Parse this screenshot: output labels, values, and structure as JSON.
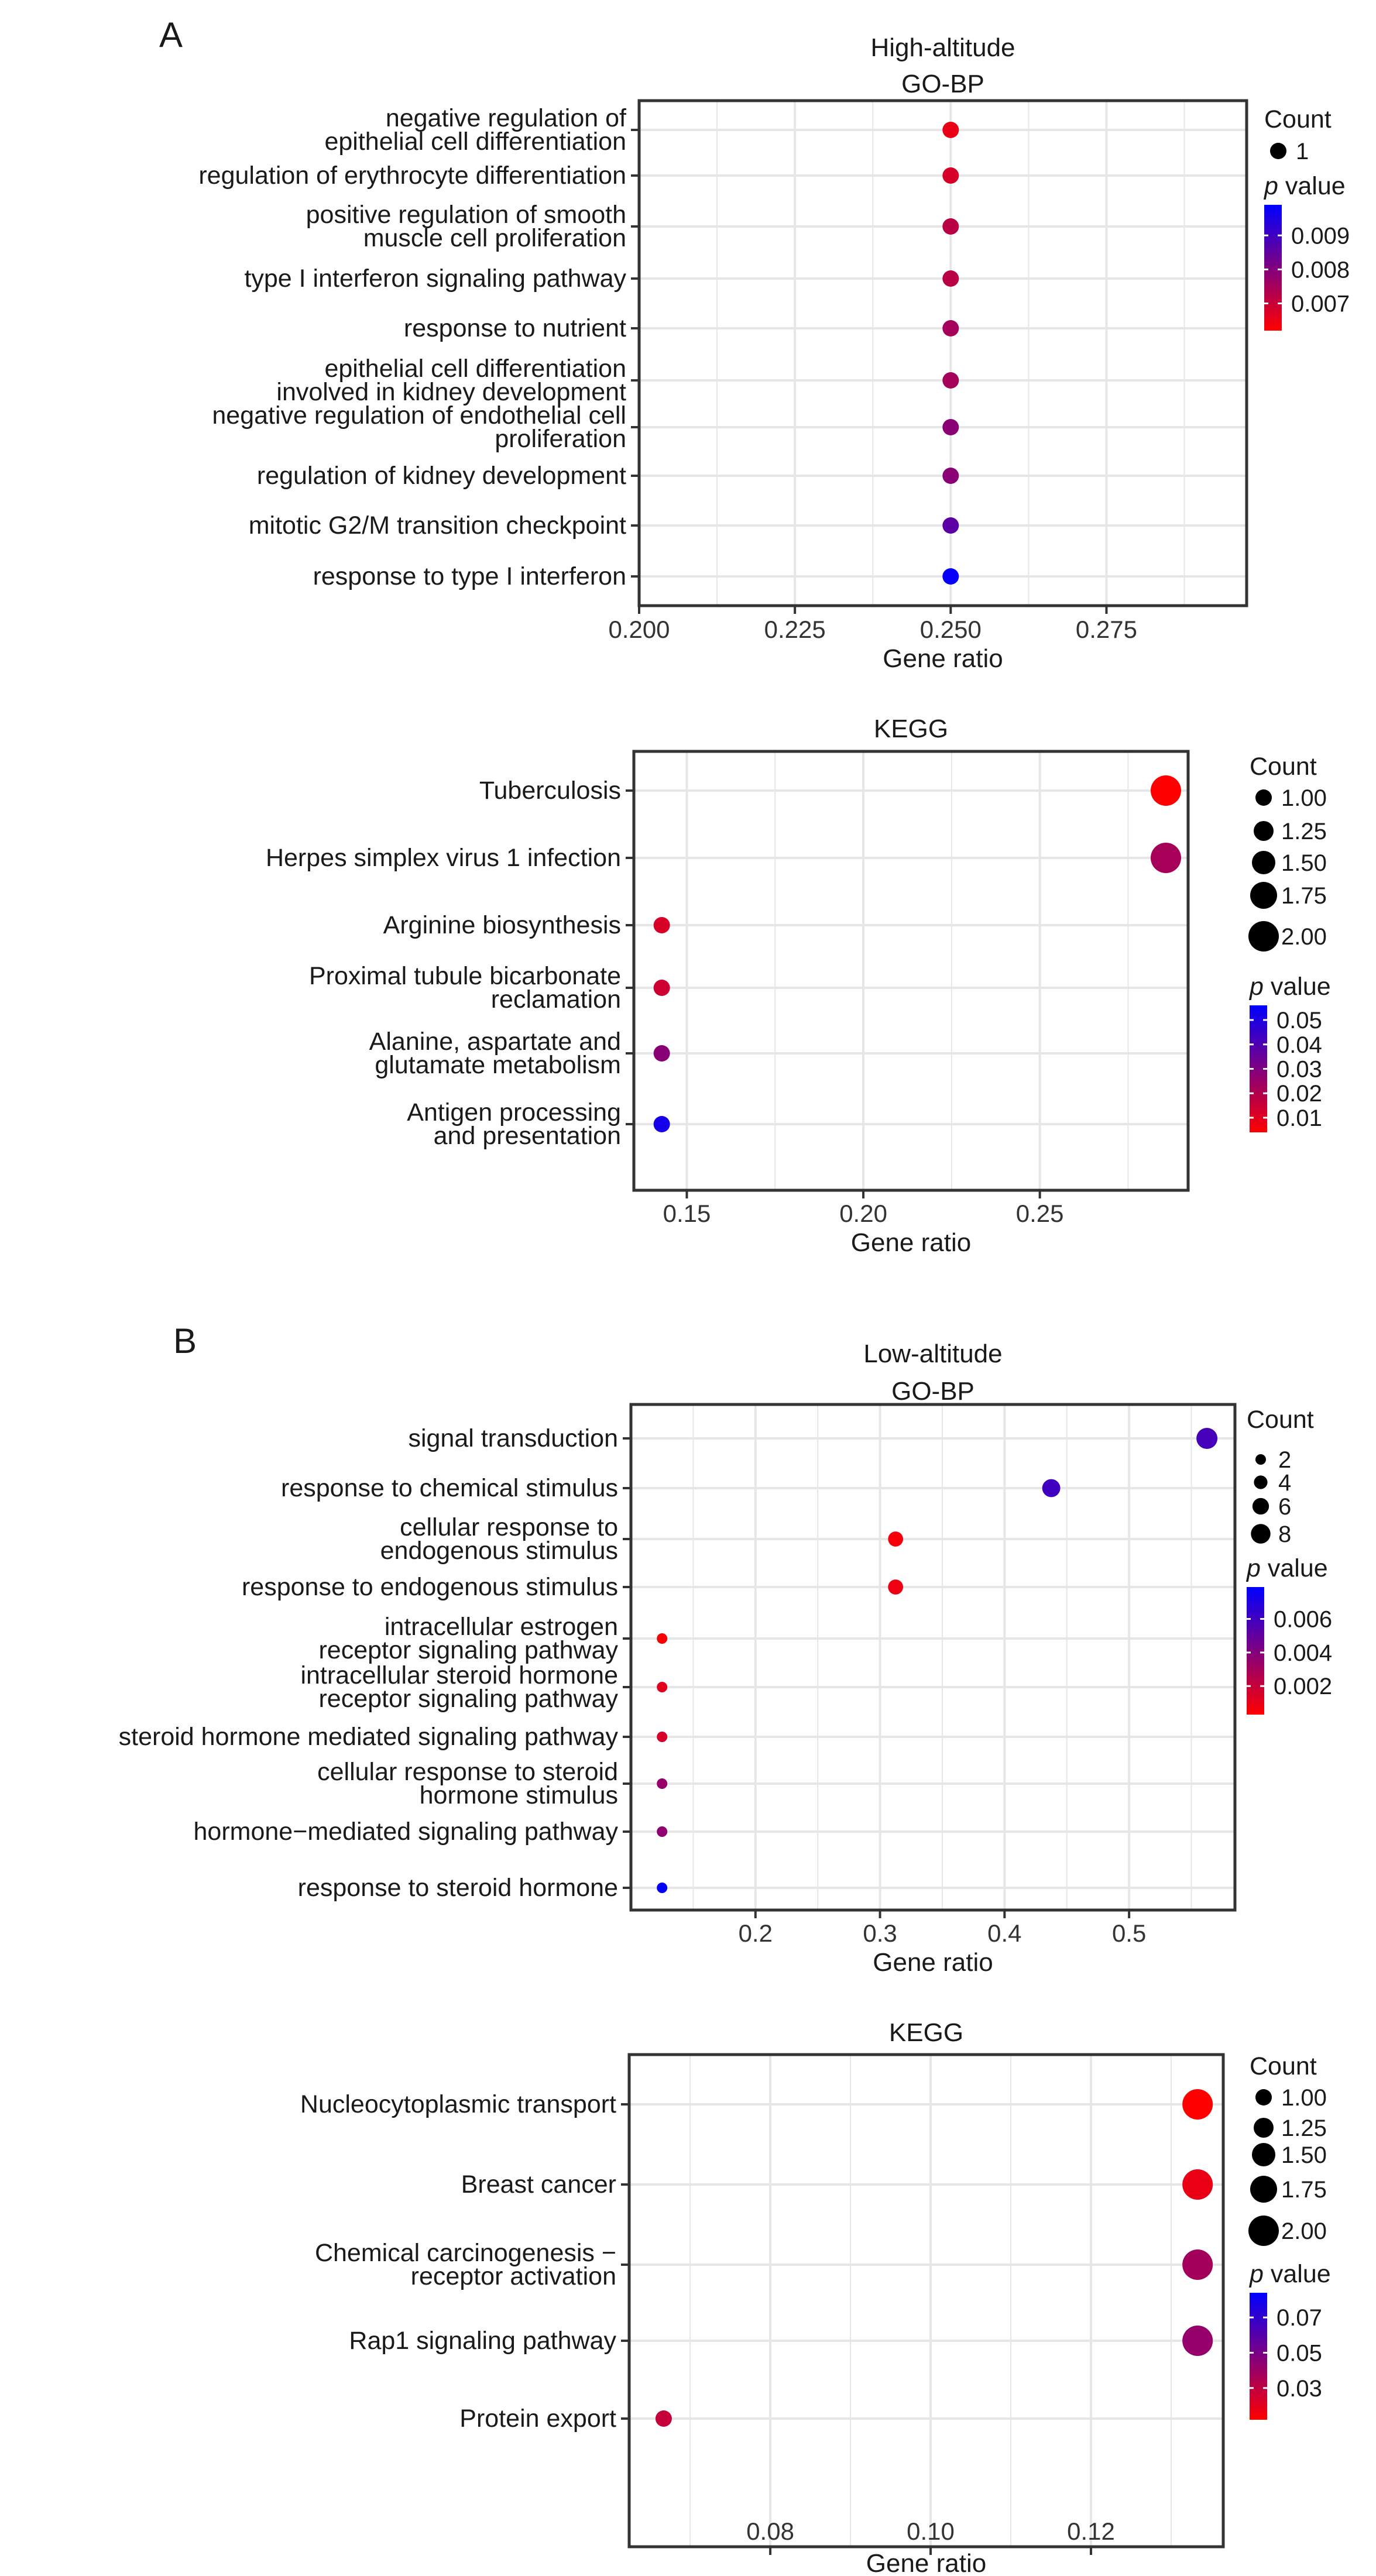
{
  "figure": {
    "panel_labels": [
      "A",
      "B"
    ]
  },
  "chart_data": [
    {
      "panel": "A",
      "type": "scatter",
      "title_lines": [
        "High-altitude",
        "GO-BP"
      ],
      "xlabel": "Gene ratio",
      "ylabel": "",
      "xlim": [
        0.2,
        0.2975
      ],
      "xticks": [
        0.2,
        0.225,
        0.25,
        0.275
      ],
      "xtick_labels": [
        "0.200",
        "0.225",
        "0.250",
        "0.275"
      ],
      "grid": true,
      "terms": [
        {
          "label": [
            "negative regulation of",
            "epithelial cell differentiation"
          ],
          "x": 0.25,
          "count": 1,
          "p": 0.0065
        },
        {
          "label": [
            "regulation of erythrocyte differentiation"
          ],
          "x": 0.25,
          "count": 1,
          "p": 0.0068
        },
        {
          "label": [
            "positive regulation of smooth",
            "muscle cell proliferation"
          ],
          "x": 0.25,
          "count": 1,
          "p": 0.0072
        },
        {
          "label": [
            "type I interferon signaling pathway"
          ],
          "x": 0.25,
          "count": 1,
          "p": 0.0072
        },
        {
          "label": [
            "response to nutrient"
          ],
          "x": 0.25,
          "count": 1,
          "p": 0.0075
        },
        {
          "label": [
            "epithelial cell differentiation",
            "involved in kidney development"
          ],
          "x": 0.25,
          "count": 1,
          "p": 0.0075
        },
        {
          "label": [
            "negative regulation of endothelial cell",
            "proliferation"
          ],
          "x": 0.25,
          "count": 1,
          "p": 0.0079
        },
        {
          "label": [
            "regulation of kidney development"
          ],
          "x": 0.25,
          "count": 1,
          "p": 0.0079
        },
        {
          "label": [
            "mitotic G2/M transition checkpoint"
          ],
          "x": 0.25,
          "count": 1,
          "p": 0.0086
        },
        {
          "label": [
            "response to type I interferon"
          ],
          "x": 0.25,
          "count": 1,
          "p": 0.0098
        }
      ],
      "size_legend": {
        "title": "Count",
        "values": [
          1
        ],
        "labels": [
          "1"
        ],
        "range": [
          1,
          1
        ]
      },
      "color_legend": {
        "title_italic": "p",
        "title_rest": " value",
        "ticks": [
          0.009,
          0.008,
          0.007
        ],
        "tick_labels": [
          "0.009",
          "0.008",
          "0.007"
        ],
        "range": [
          0.0062,
          0.0099
        ],
        "low_color": "#ff0000",
        "high_color": "#0000ff"
      }
    },
    {
      "panel": "A",
      "type": "scatter",
      "title_lines": [
        "KEGG"
      ],
      "xlabel": "Gene ratio",
      "ylabel": "",
      "xlim": [
        0.135,
        0.292
      ],
      "xticks": [
        0.15,
        0.2,
        0.25
      ],
      "xtick_labels": [
        "0.15",
        "0.20",
        "0.25"
      ],
      "grid": true,
      "terms": [
        {
          "label": [
            "Tuberculosis"
          ],
          "x": 0.2857,
          "count": 2,
          "p": 0.004
        },
        {
          "label": [
            "Herpes simplex virus 1 infection"
          ],
          "x": 0.2857,
          "count": 2,
          "p": 0.022
        },
        {
          "label": [
            "Arginine biosynthesis"
          ],
          "x": 0.1429,
          "count": 1,
          "p": 0.012
        },
        {
          "label": [
            "Proximal tubule bicarbonate",
            "reclamation"
          ],
          "x": 0.1429,
          "count": 1,
          "p": 0.014
        },
        {
          "label": [
            "Alanine, aspartate and",
            "glutamate metabolism"
          ],
          "x": 0.1429,
          "count": 1,
          "p": 0.028
        },
        {
          "label": [
            "Antigen processing",
            "and presentation"
          ],
          "x": 0.1429,
          "count": 1,
          "p": 0.052
        }
      ],
      "size_legend": {
        "title": "Count",
        "values": [
          1.0,
          1.25,
          1.5,
          1.75,
          2.0
        ],
        "labels": [
          "1.00",
          "1.25",
          "1.50",
          "1.75",
          "2.00"
        ],
        "range": [
          1,
          2
        ]
      },
      "color_legend": {
        "title_italic": "p",
        "title_rest": " value",
        "ticks": [
          0.05,
          0.04,
          0.03,
          0.02,
          0.01
        ],
        "tick_labels": [
          "0.05",
          "0.04",
          "0.03",
          "0.02",
          "0.01"
        ],
        "range": [
          0.004,
          0.056
        ],
        "low_color": "#ff0000",
        "high_color": "#0000ff"
      }
    },
    {
      "panel": "B",
      "type": "scatter",
      "title_lines": [
        "Low-altitude",
        "GO-BP"
      ],
      "xlabel": "Gene ratio",
      "ylabel": "",
      "xlim": [
        0.1,
        0.585
      ],
      "xticks": [
        0.2,
        0.3,
        0.4,
        0.5
      ],
      "xtick_labels": [
        "0.2",
        "0.3",
        "0.4",
        "0.5"
      ],
      "grid": true,
      "terms": [
        {
          "label": [
            "signal transduction"
          ],
          "x": 0.5625,
          "count": 9,
          "p": 0.0058
        },
        {
          "label": [
            "response to chemical stimulus"
          ],
          "x": 0.4375,
          "count": 7,
          "p": 0.006
        },
        {
          "label": [
            "cellular response to",
            "endogenous stimulus"
          ],
          "x": 0.3125,
          "count": 5,
          "p": 0.0006
        },
        {
          "label": [
            "response to endogenous stimulus"
          ],
          "x": 0.3125,
          "count": 5,
          "p": 0.0008
        },
        {
          "label": [
            "intracellular estrogen",
            "receptor signaling pathway"
          ],
          "x": 0.125,
          "count": 2,
          "p": 0.0004
        },
        {
          "label": [
            "intracellular steroid hormone",
            "receptor signaling pathway"
          ],
          "x": 0.125,
          "count": 2,
          "p": 0.0012
        },
        {
          "label": [
            "steroid hormone mediated signaling pathway"
          ],
          "x": 0.125,
          "count": 2,
          "p": 0.0015
        },
        {
          "label": [
            "cellular response to steroid",
            "hormone stimulus"
          ],
          "x": 0.125,
          "count": 2,
          "p": 0.0034
        },
        {
          "label": [
            "hormone−mediated signaling pathway"
          ],
          "x": 0.125,
          "count": 2,
          "p": 0.0036
        },
        {
          "label": [
            "response to steroid hormone"
          ],
          "x": 0.125,
          "count": 2,
          "p": 0.0078
        }
      ],
      "size_legend": {
        "title": "Count",
        "values": [
          2,
          4,
          6,
          8
        ],
        "labels": [
          "2",
          "4",
          "6",
          "8"
        ],
        "range": [
          2,
          9
        ]
      },
      "color_legend": {
        "title_italic": "p",
        "title_rest": " value",
        "ticks": [
          0.006,
          0.004,
          0.002
        ],
        "tick_labels": [
          "0.006",
          "0.004",
          "0.002"
        ],
        "range": [
          0.0003,
          0.0079
        ],
        "low_color": "#ff0000",
        "high_color": "#0000ff"
      }
    },
    {
      "panel": "B",
      "type": "scatter",
      "title_lines": [
        "KEGG"
      ],
      "xlabel": "Gene ratio",
      "ylabel": "",
      "xlim": [
        0.0624,
        0.1365
      ],
      "xticks": [
        0.08,
        0.1,
        0.12
      ],
      "xtick_labels": [
        "0.08",
        "0.10",
        "0.12"
      ],
      "grid": true,
      "terms": [
        {
          "label": [
            "Nucleocytoplasmic transport"
          ],
          "x": 0.1333,
          "count": 2,
          "p": 0.012
        },
        {
          "label": [
            "Breast cancer"
          ],
          "x": 0.1333,
          "count": 2,
          "p": 0.018
        },
        {
          "label": [
            "Chemical carcinogenesis −",
            "receptor activation"
          ],
          "x": 0.1333,
          "count": 2,
          "p": 0.038
        },
        {
          "label": [
            "Rap1 signaling pathway"
          ],
          "x": 0.1333,
          "count": 2,
          "p": 0.042
        },
        {
          "label": [
            "Protein export"
          ],
          "x": 0.0667,
          "count": 1,
          "p": 0.028
        }
      ],
      "size_legend": {
        "title": "Count",
        "values": [
          1.0,
          1.25,
          1.5,
          1.75,
          2.0
        ],
        "labels": [
          "1.00",
          "1.25",
          "1.50",
          "1.75",
          "2.00"
        ],
        "range": [
          1,
          2
        ]
      },
      "color_legend": {
        "title_italic": "p",
        "title_rest": " value",
        "ticks": [
          0.07,
          0.05,
          0.03
        ],
        "tick_labels": [
          "0.07",
          "0.05",
          "0.03"
        ],
        "range": [
          0.012,
          0.084
        ],
        "low_color": "#ff0000",
        "high_color": "#0000ff"
      }
    }
  ]
}
